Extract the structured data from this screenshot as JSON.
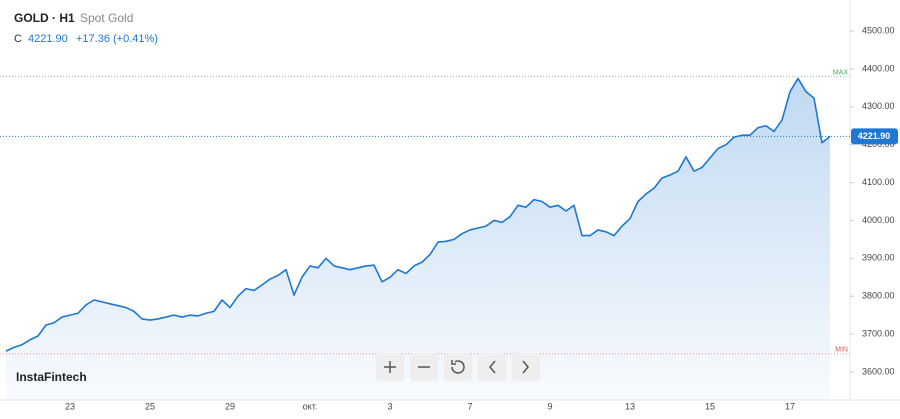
{
  "chart_data": {
    "type": "line",
    "symbol": "GOLD · H1",
    "instrument": "Spot Gold",
    "close_prefix": "C",
    "close_text": "4221.90",
    "change_text": "+17.36 (+0.41%)",
    "logo": "InstaFintech",
    "color": "#1e77d2",
    "categories": [
      null,
      null,
      null,
      null,
      null,
      null,
      null,
      null,
      "23",
      null,
      null,
      null,
      null,
      null,
      null,
      null,
      null,
      null,
      "25",
      null,
      null,
      null,
      null,
      null,
      null,
      null,
      null,
      null,
      "29",
      null,
      null,
      null,
      null,
      null,
      null,
      null,
      null,
      null,
      "окт.",
      null,
      null,
      null,
      null,
      null,
      null,
      null,
      null,
      null,
      "3",
      null,
      null,
      null,
      null,
      null,
      null,
      null,
      null,
      null,
      "7",
      null,
      null,
      null,
      null,
      null,
      null,
      null,
      null,
      null,
      "9",
      null,
      null,
      null,
      null,
      null,
      null,
      null,
      null,
      null,
      "13",
      null,
      null,
      null,
      null,
      null,
      null,
      null,
      null,
      null,
      "15",
      null,
      null,
      null,
      null,
      null,
      null,
      null,
      null,
      null,
      "17",
      null,
      null,
      null,
      null,
      null
    ],
    "values": [
      3655,
      3665,
      3672,
      3685,
      3695,
      3724,
      3730,
      3745,
      3750,
      3755,
      3777,
      3790,
      3785,
      3780,
      3775,
      3770,
      3760,
      3740,
      3737,
      3740,
      3745,
      3750,
      3745,
      3750,
      3748,
      3755,
      3760,
      3790,
      3770,
      3800,
      3820,
      3815,
      3830,
      3845,
      3855,
      3870,
      3803,
      3850,
      3880,
      3875,
      3900,
      3880,
      3875,
      3870,
      3875,
      3880,
      3882,
      3838,
      3850,
      3870,
      3860,
      3880,
      3890,
      3910,
      3943,
      3945,
      3950,
      3965,
      3975,
      3980,
      3985,
      4000,
      3995,
      4010,
      4040,
      4035,
      4055,
      4050,
      4035,
      4040,
      4025,
      4040,
      3960,
      3960,
      3975,
      3970,
      3960,
      3985,
      4005,
      4050,
      4070,
      4085,
      4112,
      4120,
      4130,
      4168,
      4130,
      4140,
      4165,
      4190,
      4200,
      4220,
      4225,
      4225,
      4245,
      4250,
      4235,
      4265,
      4340,
      4375,
      4340,
      4323,
      4205,
      4221.9
    ],
    "ylim": [
      3526,
      4582
    ],
    "yticks": [
      {
        "value": 3600,
        "label": "3600.00"
      },
      {
        "value": 3700,
        "label": "3700.00"
      },
      {
        "value": 3800,
        "label": "3800.00"
      },
      {
        "value": 3900,
        "label": "3900.00"
      },
      {
        "value": 4000,
        "label": "4000.00"
      },
      {
        "value": 4100,
        "label": "4100.00"
      },
      {
        "value": 4200,
        "label": "4200.00"
      },
      {
        "value": 4300,
        "label": "4300.00"
      },
      {
        "value": 4400,
        "label": "4400.00"
      },
      {
        "value": 4500,
        "label": "4500.00"
      }
    ],
    "price_tag": {
      "value": 4221.9,
      "label": "4221.90"
    },
    "max_line": {
      "value": 4380,
      "label": "MAX"
    },
    "min_line": {
      "value": 3648,
      "label": "MIN"
    }
  }
}
